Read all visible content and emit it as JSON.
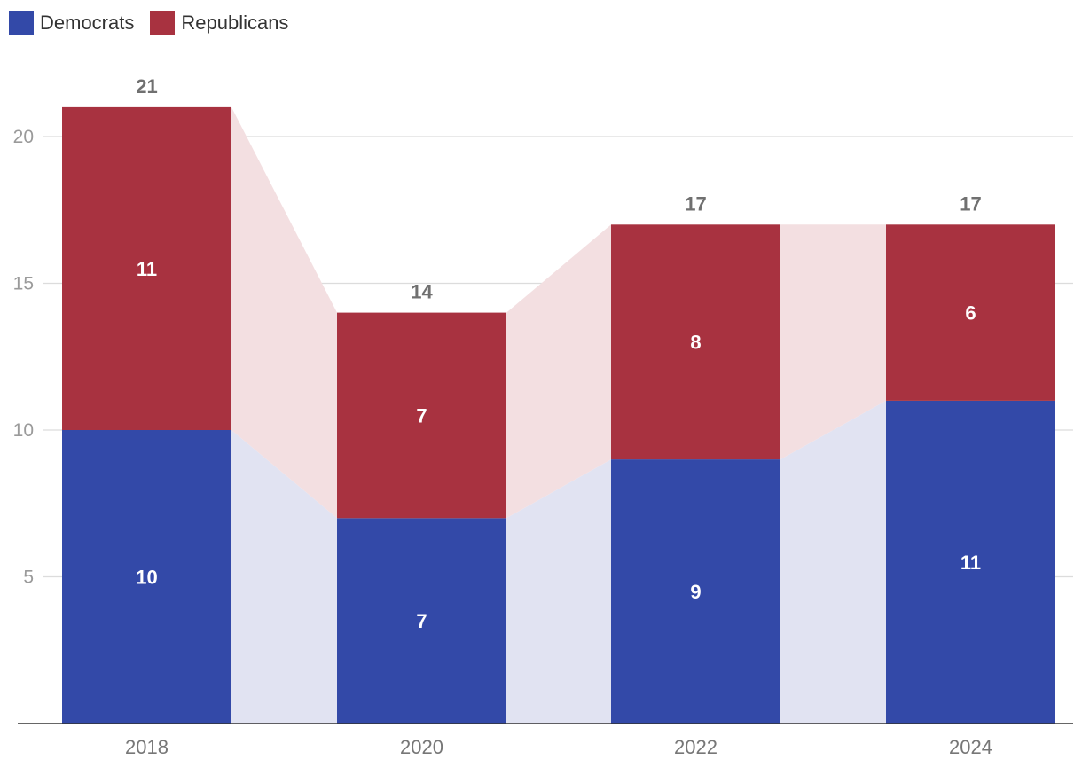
{
  "chart_data": {
    "type": "bar",
    "stacked": true,
    "categories": [
      "2018",
      "2020",
      "2022",
      "2024"
    ],
    "series": [
      {
        "name": "Democrats",
        "values": [
          10,
          7,
          9,
          11
        ],
        "color": "#3349a8"
      },
      {
        "name": "Republicans",
        "values": [
          11,
          7,
          8,
          6
        ],
        "color": "#a83240"
      }
    ],
    "totals": [
      21,
      14,
      17,
      17
    ],
    "connector_colors": {
      "Democrats": "#e1e3f2",
      "Republicans": "#f3dfe1"
    },
    "y_ticks": [
      5,
      10,
      15,
      20
    ],
    "ylim": [
      0,
      22
    ],
    "grid": true,
    "legend_position": "top-left"
  }
}
